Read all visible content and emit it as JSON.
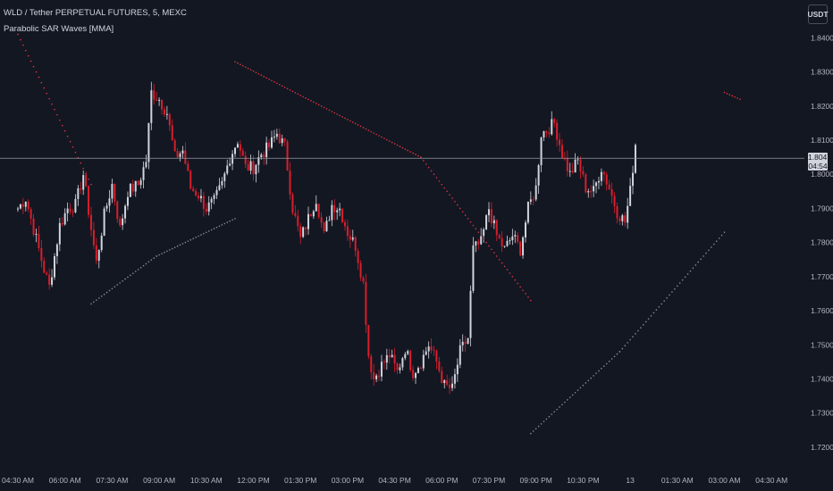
{
  "header": {
    "title": "WLD / Tether PERPETUAL FUTURES, 5, MEXC",
    "indicator": "Parabolic SAR Waves [MMA]"
  },
  "currency_button": "USDT",
  "current_price": {
    "value": "1.8047",
    "countdown": "04:54"
  },
  "colors": {
    "background": "#131722",
    "up": "#d1d4dc",
    "down": "#d81e2c",
    "sar_up": "#848e9c",
    "sar_down": "#e0343f"
  },
  "chart_data": {
    "type": "candlestick",
    "ylim": [
      1.715,
      1.849
    ],
    "y_ticks": [
      "1.8400",
      "1.8300",
      "1.8200",
      "1.8100",
      "1.8000",
      "1.7900",
      "1.7800",
      "1.7700",
      "1.7600",
      "1.7500",
      "1.7400",
      "1.7300",
      "1.7200"
    ],
    "x_ticks": [
      "04:30 AM",
      "06:00 AM",
      "07:30 AM",
      "09:00 AM",
      "10:30 AM",
      "12:00 PM",
      "01:30 PM",
      "03:00 PM",
      "04:30 PM",
      "06:00 PM",
      "07:30 PM",
      "09:00 PM",
      "10:30 PM",
      "13",
      "01:30 AM",
      "03:00 AM",
      "04:30 AM"
    ],
    "x_tick_slot": [
      0,
      18,
      36,
      54,
      72,
      90,
      108,
      126,
      144,
      162,
      180,
      198,
      216,
      234,
      252,
      270,
      288
    ],
    "candles_per_tick": 18,
    "close_anchors": [
      [
        0,
        1.79
      ],
      [
        3,
        1.793
      ],
      [
        6,
        1.784
      ],
      [
        10,
        1.772
      ],
      [
        12,
        1.767
      ],
      [
        16,
        1.785
      ],
      [
        19,
        1.79
      ],
      [
        22,
        1.791
      ],
      [
        25,
        1.8
      ],
      [
        28,
        1.784
      ],
      [
        30,
        1.774
      ],
      [
        33,
        1.788
      ],
      [
        36,
        1.797
      ],
      [
        39,
        1.784
      ],
      [
        42,
        1.795
      ],
      [
        46,
        1.797
      ],
      [
        49,
        1.804
      ],
      [
        51,
        1.824
      ],
      [
        54,
        1.822
      ],
      [
        57,
        1.818
      ],
      [
        60,
        1.805
      ],
      [
        63,
        1.807
      ],
      [
        66,
        1.796
      ],
      [
        69,
        1.794
      ],
      [
        72,
        1.79
      ],
      [
        75,
        1.792
      ],
      [
        78,
        1.797
      ],
      [
        81,
        1.805
      ],
      [
        84,
        1.81
      ],
      [
        87,
        1.802
      ],
      [
        90,
        1.802
      ],
      [
        93,
        1.806
      ],
      [
        96,
        1.808
      ],
      [
        99,
        1.812
      ],
      [
        102,
        1.808
      ],
      [
        105,
        1.79
      ],
      [
        108,
        1.781
      ],
      [
        111,
        1.787
      ],
      [
        114,
        1.793
      ],
      [
        117,
        1.782
      ],
      [
        120,
        1.791
      ],
      [
        123,
        1.79
      ],
      [
        126,
        1.783
      ],
      [
        129,
        1.779
      ],
      [
        132,
        1.768
      ],
      [
        134,
        1.747
      ],
      [
        136,
        1.74
      ],
      [
        139,
        1.744
      ],
      [
        142,
        1.747
      ],
      [
        145,
        1.742
      ],
      [
        148,
        1.749
      ],
      [
        151,
        1.742
      ],
      [
        154,
        1.745
      ],
      [
        157,
        1.75
      ],
      [
        160,
        1.745
      ],
      [
        163,
        1.738
      ],
      [
        166,
        1.737
      ],
      [
        169,
        1.748
      ],
      [
        172,
        1.752
      ],
      [
        174,
        1.778
      ],
      [
        177,
        1.78
      ],
      [
        180,
        1.79
      ],
      [
        183,
        1.782
      ],
      [
        186,
        1.778
      ],
      [
        189,
        1.782
      ],
      [
        192,
        1.778
      ],
      [
        195,
        1.79
      ],
      [
        198,
        1.796
      ],
      [
        200,
        1.812
      ],
      [
        202,
        1.813
      ],
      [
        205,
        1.815
      ],
      [
        208,
        1.806
      ],
      [
        211,
        1.8
      ],
      [
        214,
        1.804
      ],
      [
        217,
        1.796
      ],
      [
        220,
        1.795
      ],
      [
        223,
        1.802
      ],
      [
        226,
        1.796
      ],
      [
        229,
        1.789
      ],
      [
        232,
        1.786
      ],
      [
        234,
        1.795
      ],
      [
        236,
        1.809
      ]
    ],
    "sar_segments": [
      {
        "direction": "down",
        "slots": [
          0,
          28
        ],
        "values": [
          1.841,
          1.797
        ]
      },
      {
        "direction": "up",
        "slots": [
          28,
          53
        ],
        "values": [
          1.762,
          1.776
        ]
      },
      {
        "direction": "up",
        "slots": [
          53,
          83
        ],
        "values": [
          1.776,
          1.787
        ]
      },
      {
        "direction": "down",
        "slots": [
          83,
          154
        ],
        "values": [
          1.833,
          1.805
        ]
      },
      {
        "direction": "down",
        "slots": [
          154,
          196
        ],
        "values": [
          1.805,
          1.763
        ]
      },
      {
        "direction": "up",
        "slots": [
          196,
          230
        ],
        "values": [
          1.724,
          1.748
        ]
      },
      {
        "direction": "up",
        "slots": [
          230,
          270
        ],
        "values": [
          1.748,
          1.783
        ]
      },
      {
        "direction": "down",
        "slots": [
          270,
          276
        ],
        "values": [
          1.824,
          1.822
        ]
      }
    ]
  }
}
